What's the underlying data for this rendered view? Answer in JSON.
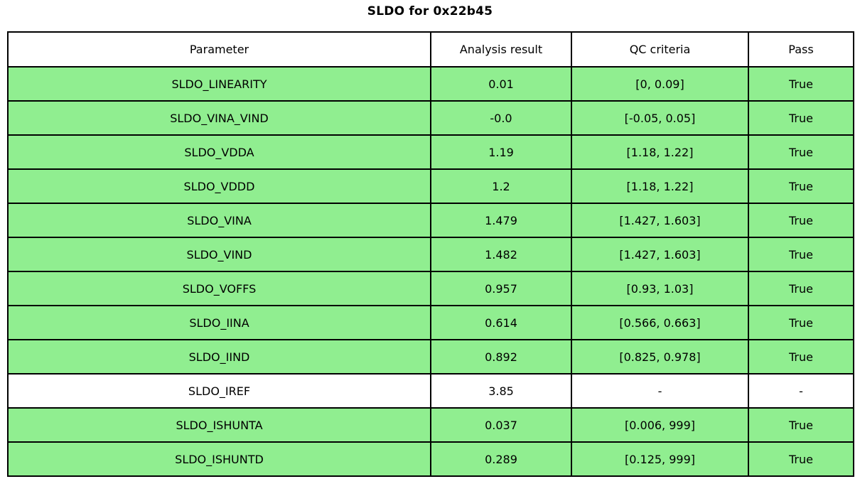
{
  "title": "SLDO for 0x22b45",
  "colors": {
    "pass_row_bg": "#90EE90",
    "neutral_row_bg": "#FFFFFF",
    "border": "#000000",
    "text": "#000000"
  },
  "chart_data": {
    "type": "table",
    "title": "SLDO for 0x22b45",
    "columns": [
      "Parameter",
      "Analysis result",
      "QC criteria",
      "Pass"
    ],
    "rows": [
      {
        "parameter": "SLDO_LINEARITY",
        "analysis_result": "0.01",
        "qc_criteria": "[0, 0.09]",
        "pass": "True",
        "bg": "#90EE90"
      },
      {
        "parameter": "SLDO_VINA_VIND",
        "analysis_result": "-0.0",
        "qc_criteria": "[-0.05, 0.05]",
        "pass": "True",
        "bg": "#90EE90"
      },
      {
        "parameter": "SLDO_VDDA",
        "analysis_result": "1.19",
        "qc_criteria": "[1.18, 1.22]",
        "pass": "True",
        "bg": "#90EE90"
      },
      {
        "parameter": "SLDO_VDDD",
        "analysis_result": "1.2",
        "qc_criteria": "[1.18, 1.22]",
        "pass": "True",
        "bg": "#90EE90"
      },
      {
        "parameter": "SLDO_VINA",
        "analysis_result": "1.479",
        "qc_criteria": "[1.427, 1.603]",
        "pass": "True",
        "bg": "#90EE90"
      },
      {
        "parameter": "SLDO_VIND",
        "analysis_result": "1.482",
        "qc_criteria": "[1.427, 1.603]",
        "pass": "True",
        "bg": "#90EE90"
      },
      {
        "parameter": "SLDO_VOFFS",
        "analysis_result": "0.957",
        "qc_criteria": "[0.93, 1.03]",
        "pass": "True",
        "bg": "#90EE90"
      },
      {
        "parameter": "SLDO_IINA",
        "analysis_result": "0.614",
        "qc_criteria": "[0.566, 0.663]",
        "pass": "True",
        "bg": "#90EE90"
      },
      {
        "parameter": "SLDO_IIND",
        "analysis_result": "0.892",
        "qc_criteria": "[0.825, 0.978]",
        "pass": "True",
        "bg": "#90EE90"
      },
      {
        "parameter": "SLDO_IREF",
        "analysis_result": "3.85",
        "qc_criteria": "-",
        "pass": "-",
        "bg": "#FFFFFF"
      },
      {
        "parameter": "SLDO_ISHUNTA",
        "analysis_result": "0.037",
        "qc_criteria": "[0.006, 999]",
        "pass": "True",
        "bg": "#90EE90"
      },
      {
        "parameter": "SLDO_ISHUNTD",
        "analysis_result": "0.289",
        "qc_criteria": "[0.125, 999]",
        "pass": "True",
        "bg": "#90EE90"
      }
    ]
  }
}
